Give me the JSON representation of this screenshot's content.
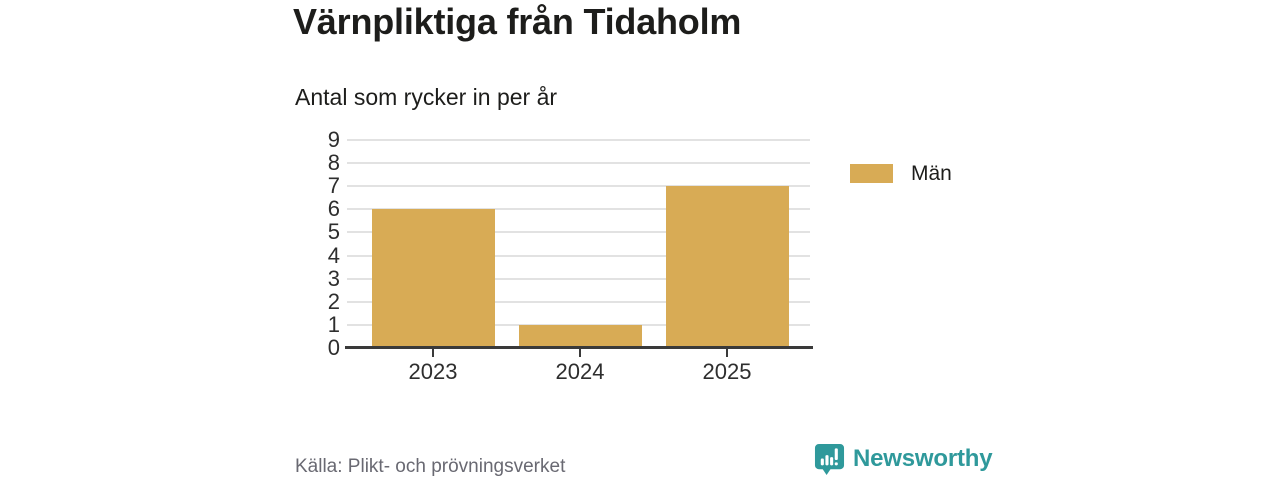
{
  "title": "Värnpliktiga från Tidaholm",
  "subtitle": "Antal som rycker in per år",
  "source": "Källa: Plikt- och prövningsverket",
  "brand": {
    "name": "Newsworthy",
    "color": "#2f999b",
    "icon": "newsworthy-speech-bubble-bar-chart-icon"
  },
  "legend": [
    {
      "label": "Män",
      "color": "#d8ab55"
    }
  ],
  "colors": {
    "bar": "#d8ab55",
    "axis": "#3a3a3a",
    "grid": "#e2e2e2",
    "text": "#1d1d1b",
    "muted_text": "#696972",
    "brand_teal": "#2f999b"
  },
  "chart_data": {
    "type": "bar",
    "title": "Värnpliktiga från Tidaholm",
    "subtitle": "Antal som rycker in per år",
    "categories": [
      "2023",
      "2024",
      "2025"
    ],
    "series": [
      {
        "name": "Män",
        "color": "#d8ab55",
        "values": [
          6,
          1,
          7
        ]
      }
    ],
    "xlabel": "",
    "ylabel": "",
    "ylim": [
      0,
      9
    ],
    "yticks": [
      0,
      1,
      2,
      3,
      4,
      5,
      6,
      7,
      8,
      9
    ],
    "grid": "horizontal-only",
    "legend_position": "right",
    "source": "Källa: Plikt- och prövningsverket"
  }
}
